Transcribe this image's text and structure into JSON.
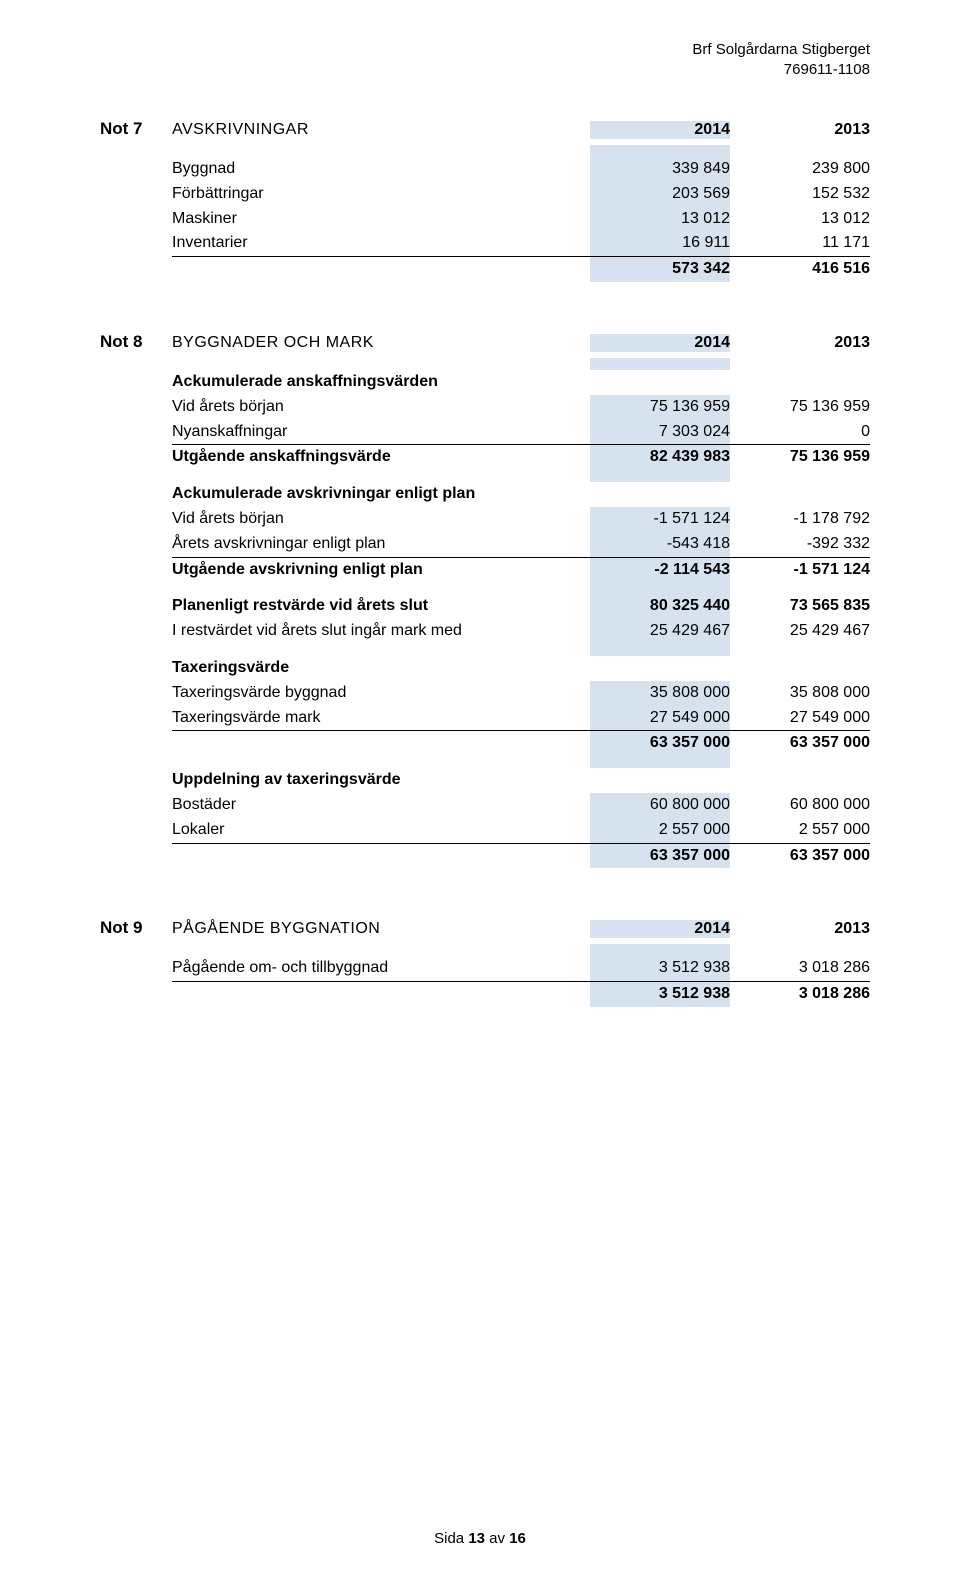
{
  "header": {
    "company": "Brf Solgårdarna Stigberget",
    "orgnr": "769611-1108"
  },
  "note7": {
    "number": "Not 7",
    "title": "AVSKRIVNINGAR",
    "year1": "2014",
    "year2": "2013",
    "rows": [
      {
        "label": "Byggnad",
        "v1": "339 849",
        "v2": "239 800"
      },
      {
        "label": "Förbättringar",
        "v1": "203 569",
        "v2": "152 532"
      },
      {
        "label": "Maskiner",
        "v1": "13 012",
        "v2": "13 012"
      },
      {
        "label": "Inventarier",
        "v1": "16 911",
        "v2": "11 171"
      }
    ],
    "total": {
      "label": "",
      "v1": "573 342",
      "v2": "416 516"
    }
  },
  "note8": {
    "number": "Not 8",
    "title": "BYGGNADER OCH MARK",
    "year1": "2014",
    "year2": "2013",
    "sec1_head": "Ackumulerade anskaffningsvärden",
    "sec1_rows": [
      {
        "label": "Vid årets början",
        "v1": "75 136 959",
        "v2": "75 136 959"
      },
      {
        "label": "Nyanskaffningar",
        "v1": "7 303 024",
        "v2": "0"
      }
    ],
    "sec1_total": {
      "label": "Utgående anskaffningsvärde",
      "v1": "82 439 983",
      "v2": "75 136 959"
    },
    "sec2_head": "Ackumulerade avskrivningar enligt plan",
    "sec2_rows": [
      {
        "label": "Vid årets början",
        "v1": "-1 571 124",
        "v2": "-1 178 792"
      },
      {
        "label": "Årets avskrivningar enligt plan",
        "v1": "-543 418",
        "v2": "-392 332"
      }
    ],
    "sec2_total": {
      "label": "Utgående avskrivning enligt plan",
      "v1": "-2 114 543",
      "v2": "-1 571 124"
    },
    "sec3_rows": [
      {
        "label": "Planenligt restvärde vid årets slut",
        "v1": "80 325 440",
        "v2": "73 565 835",
        "bold": true
      },
      {
        "label": "I restvärdet vid årets slut ingår mark med",
        "v1": "25 429 467",
        "v2": "25 429 467"
      }
    ],
    "sec4_head": "Taxeringsvärde",
    "sec4_rows": [
      {
        "label": "Taxeringsvärde byggnad",
        "v1": "35 808 000",
        "v2": "35 808 000"
      },
      {
        "label": "Taxeringsvärde mark",
        "v1": "27 549 000",
        "v2": "27 549 000"
      }
    ],
    "sec4_total": {
      "label": "",
      "v1": "63 357 000",
      "v2": "63 357 000"
    },
    "sec5_head": "Uppdelning av taxeringsvärde",
    "sec5_rows": [
      {
        "label": "Bostäder",
        "v1": "60 800 000",
        "v2": "60 800 000"
      },
      {
        "label": "Lokaler",
        "v1": "2 557 000",
        "v2": "2 557 000"
      }
    ],
    "sec5_total": {
      "label": "",
      "v1": "63 357 000",
      "v2": "63 357 000"
    }
  },
  "note9": {
    "number": "Not 9",
    "title": "PÅGÅENDE BYGGNATION",
    "year1": "2014",
    "year2": "2013",
    "rows": [
      {
        "label": "Pågående om- och tillbyggnad",
        "v1": "3 512 938",
        "v2": "3 018 286"
      }
    ],
    "total": {
      "label": "",
      "v1": "3 512 938",
      "v2": "3 018 286"
    }
  },
  "footer": {
    "prefix": "Sida ",
    "page": "13",
    "mid": " av ",
    "total": "16"
  }
}
